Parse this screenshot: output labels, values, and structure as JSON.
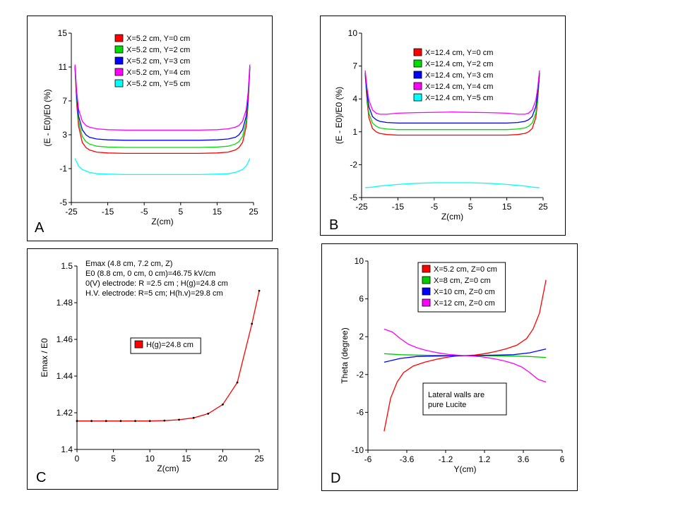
{
  "chart_data": [
    {
      "id": "a",
      "type": "line",
      "panel_label": "A",
      "xlabel": "Z(cm)",
      "ylabel": "(E - E0)/E0 (%)",
      "xlim": [
        -25,
        25
      ],
      "ylim": [
        -5,
        15
      ],
      "xticks": [
        -25,
        -15,
        -5,
        5,
        15,
        25
      ],
      "yticks": [
        -5,
        -1,
        3,
        7,
        11,
        15
      ],
      "legend_position": "top-right",
      "series": [
        {
          "name": "X=5.2 cm, Y=0 cm",
          "color": "#ff0000",
          "x": [
            -24,
            -23.5,
            -23,
            -22,
            -21,
            -20,
            -18,
            -15,
            -10,
            0,
            10,
            15,
            18,
            20,
            21,
            22,
            23,
            23.5,
            24
          ],
          "y": [
            10.9,
            6.5,
            4.0,
            2.1,
            1.5,
            1.2,
            0.95,
            0.85,
            0.8,
            0.8,
            0.8,
            0.85,
            0.95,
            1.2,
            1.5,
            2.1,
            4.0,
            6.5,
            10.9
          ]
        },
        {
          "name": "X=5.2 cm, Y=2 cm",
          "color": "#00dd00",
          "x": [
            -24,
            -23.5,
            -23,
            -22,
            -21,
            -20,
            -18,
            -15,
            -10,
            0,
            10,
            15,
            18,
            20,
            21,
            22,
            23,
            23.5,
            24
          ],
          "y": [
            11.0,
            7.0,
            4.6,
            2.8,
            2.2,
            1.9,
            1.65,
            1.55,
            1.5,
            1.5,
            1.5,
            1.55,
            1.65,
            1.9,
            2.2,
            2.8,
            4.6,
            7.0,
            11.0
          ]
        },
        {
          "name": "X=5.2 cm, Y=3 cm",
          "color": "#0000ff",
          "x": [
            -24,
            -23.5,
            -23,
            -22,
            -21,
            -20,
            -18,
            -15,
            -10,
            0,
            10,
            15,
            18,
            20,
            21,
            22,
            23,
            23.5,
            24
          ],
          "y": [
            11.1,
            7.5,
            5.2,
            3.6,
            3.0,
            2.7,
            2.5,
            2.4,
            2.35,
            2.35,
            2.35,
            2.4,
            2.5,
            2.7,
            3.0,
            3.6,
            5.2,
            7.5,
            11.1
          ]
        },
        {
          "name": "X=5.2 cm, Y=4 cm",
          "color": "#ff00ff",
          "x": [
            -24,
            -23.5,
            -23,
            -22,
            -21,
            -20,
            -18,
            -15,
            -10,
            0,
            10,
            15,
            18,
            20,
            21,
            22,
            23,
            23.5,
            24
          ],
          "y": [
            11.3,
            8.0,
            6.0,
            4.6,
            4.1,
            3.9,
            3.7,
            3.6,
            3.55,
            3.55,
            3.55,
            3.6,
            3.7,
            3.9,
            4.1,
            4.6,
            6.0,
            8.0,
            11.3
          ]
        },
        {
          "name": "X=5.2 cm, Y=5 cm",
          "color": "#00ffff",
          "x": [
            -24,
            -23,
            -22,
            -20,
            -18,
            -15,
            -10,
            0,
            10,
            15,
            18,
            20,
            22,
            23,
            24
          ],
          "y": [
            0.2,
            -0.7,
            -1.1,
            -1.45,
            -1.6,
            -1.65,
            -1.7,
            -1.7,
            -1.7,
            -1.65,
            -1.6,
            -1.45,
            -1.1,
            -0.7,
            0.2
          ]
        }
      ]
    },
    {
      "id": "b",
      "type": "line",
      "panel_label": "B",
      "xlabel": "Z(cm)",
      "ylabel": "(E - E0)/E0 (%)",
      "xlim": [
        -25,
        25
      ],
      "ylim": [
        -5,
        10
      ],
      "xticks": [
        -25,
        -15,
        -5,
        5,
        15,
        25
      ],
      "yticks": [
        -5,
        -2,
        1,
        4,
        7,
        10
      ],
      "legend_position": "top-right",
      "series": [
        {
          "name": "X=12.4 cm, Y=0 cm",
          "color": "#ff0000",
          "x": [
            -24,
            -23.5,
            -23,
            -22,
            -21,
            -20,
            -18,
            -15,
            -10,
            0,
            10,
            15,
            18,
            20,
            21,
            22,
            23,
            23.5,
            24
          ],
          "y": [
            6.2,
            3.8,
            2.3,
            1.3,
            1.0,
            0.85,
            0.75,
            0.7,
            0.7,
            0.7,
            0.7,
            0.7,
            0.75,
            0.85,
            1.0,
            1.3,
            2.3,
            3.8,
            6.2
          ]
        },
        {
          "name": "X=12.4 cm, Y=2 cm",
          "color": "#00dd00",
          "x": [
            -24,
            -23.5,
            -23,
            -22,
            -21,
            -20,
            -18,
            -15,
            -10,
            0,
            10,
            15,
            18,
            20,
            21,
            22,
            23,
            23.5,
            24
          ],
          "y": [
            6.3,
            4.1,
            2.7,
            1.8,
            1.5,
            1.35,
            1.25,
            1.2,
            1.2,
            1.2,
            1.2,
            1.2,
            1.25,
            1.35,
            1.5,
            1.8,
            2.7,
            4.1,
            6.3
          ]
        },
        {
          "name": "X=12.4 cm, Y=3 cm",
          "color": "#0000ff",
          "x": [
            -24,
            -23.5,
            -23,
            -22,
            -21,
            -20,
            -18,
            -15,
            -10,
            0,
            10,
            15,
            18,
            20,
            21,
            22,
            23,
            23.5,
            24
          ],
          "y": [
            6.4,
            4.5,
            3.3,
            2.4,
            2.1,
            1.95,
            1.85,
            1.8,
            1.8,
            1.8,
            1.8,
            1.8,
            1.85,
            1.95,
            2.1,
            2.4,
            3.3,
            4.5,
            6.4
          ]
        },
        {
          "name": "X=12.4 cm, Y=4 cm",
          "color": "#ff00ff",
          "x": [
            -24,
            -23.5,
            -23,
            -22,
            -21,
            -20,
            -18,
            -15,
            -10,
            0,
            10,
            15,
            18,
            20,
            21,
            22,
            23,
            23.5,
            24
          ],
          "y": [
            6.6,
            5.0,
            3.9,
            3.0,
            2.7,
            2.6,
            2.6,
            2.7,
            2.75,
            2.8,
            2.75,
            2.7,
            2.6,
            2.6,
            2.7,
            3.0,
            3.9,
            5.0,
            6.6
          ]
        },
        {
          "name": "X=12.4 cm, Y=5 cm",
          "color": "#00ffff",
          "x": [
            -24,
            -22,
            -20,
            -15,
            -10,
            -5,
            0,
            5,
            10,
            15,
            20,
            22,
            24
          ],
          "y": [
            -4.1,
            -4.05,
            -3.95,
            -3.8,
            -3.7,
            -3.65,
            -3.65,
            -3.65,
            -3.7,
            -3.8,
            -3.95,
            -4.05,
            -4.1
          ]
        }
      ]
    },
    {
      "id": "c",
      "type": "line",
      "panel_label": "C",
      "xlabel": "Z(cm)",
      "ylabel": "Emax / E0",
      "xlim": [
        0,
        25
      ],
      "ylim": [
        1.4,
        1.5
      ],
      "xticks": [
        0,
        5,
        10,
        15,
        20,
        25
      ],
      "yticks": [
        1.4,
        1.42,
        1.44,
        1.46,
        1.48,
        1.5
      ],
      "annotation_lines": [
        "Emax (4.8 cm, 7.2 cm, Z)",
        "E0 (8.8 cm, 0 cm, 0 cm)=46.75 kV/cm",
        "0(V) electrode: R =2.5 cm ; H(g)=24.8 cm",
        "H.V. electrode: R=5 cm; H(h.v)=29.8 cm"
      ],
      "legend_position": "center",
      "series": [
        {
          "name": "H(g)=24.8 cm",
          "color": "#ff0000",
          "x": [
            0,
            2,
            4,
            6,
            8,
            10,
            12,
            14,
            16,
            18,
            20,
            22,
            24,
            25
          ],
          "y": [
            1.4155,
            1.4155,
            1.4155,
            1.4155,
            1.4155,
            1.4155,
            1.4157,
            1.4162,
            1.4172,
            1.4195,
            1.4245,
            1.4365,
            1.4685,
            1.4865
          ]
        }
      ]
    },
    {
      "id": "d",
      "type": "line",
      "panel_label": "D",
      "xlabel": "Y(cm)",
      "ylabel": "Theta (degree)",
      "xlim": [
        -6,
        6
      ],
      "ylim": [
        -10,
        10
      ],
      "xticks": [
        -6,
        -3.6,
        -1.2,
        1.2,
        3.6,
        6
      ],
      "yticks": [
        -10,
        -6,
        -2,
        2,
        6,
        10
      ],
      "annotation_lines": [
        "Lateral walls are",
        "pure Lucite"
      ],
      "legend_position": "top-right",
      "series": [
        {
          "name": "X=5.2 cm, Z=0 cm",
          "color": "#ff0000",
          "x": [
            -5,
            -4.6,
            -4.2,
            -3.8,
            -3.2,
            -2.5,
            -1.8,
            -1.2,
            -0.6,
            0,
            0.6,
            1.2,
            1.8,
            2.5,
            3.2,
            3.8,
            4.2,
            4.6,
            5
          ],
          "y": [
            -8.0,
            -4.5,
            -2.8,
            -1.8,
            -1.1,
            -0.7,
            -0.4,
            -0.2,
            -0.05,
            0,
            0.05,
            0.2,
            0.4,
            0.7,
            1.1,
            1.8,
            2.8,
            4.5,
            8.0
          ]
        },
        {
          "name": "X=8 cm, Z=0 cm",
          "color": "#00cc00",
          "x": [
            -5,
            -4,
            -3,
            -2,
            -1,
            0,
            1,
            2,
            3,
            4,
            5
          ],
          "y": [
            0.2,
            0.1,
            0.05,
            0.02,
            0.01,
            0,
            -0.01,
            -0.02,
            -0.05,
            -0.1,
            -0.2
          ]
        },
        {
          "name": "X=10 cm, Z=0 cm",
          "color": "#0000ff",
          "x": [
            -5,
            -4,
            -3,
            -2,
            -1,
            0,
            1,
            2,
            3,
            4,
            5
          ],
          "y": [
            -0.7,
            -0.3,
            -0.1,
            -0.05,
            -0.02,
            0,
            0.02,
            0.05,
            0.1,
            0.3,
            0.7
          ]
        },
        {
          "name": "X=12 cm, Z=0 cm",
          "color": "#ff00ff",
          "x": [
            -5,
            -4.5,
            -4,
            -3.5,
            -3,
            -2.5,
            -2,
            -1.5,
            -1,
            -0.5,
            0,
            0.5,
            1,
            1.5,
            2,
            2.5,
            3,
            3.5,
            4,
            4.5,
            5
          ],
          "y": [
            2.8,
            2.5,
            1.8,
            1.2,
            0.85,
            0.6,
            0.4,
            0.25,
            0.12,
            0.05,
            0,
            -0.05,
            -0.12,
            -0.25,
            -0.4,
            -0.6,
            -0.85,
            -1.2,
            -1.8,
            -2.5,
            -2.8
          ]
        }
      ]
    }
  ]
}
